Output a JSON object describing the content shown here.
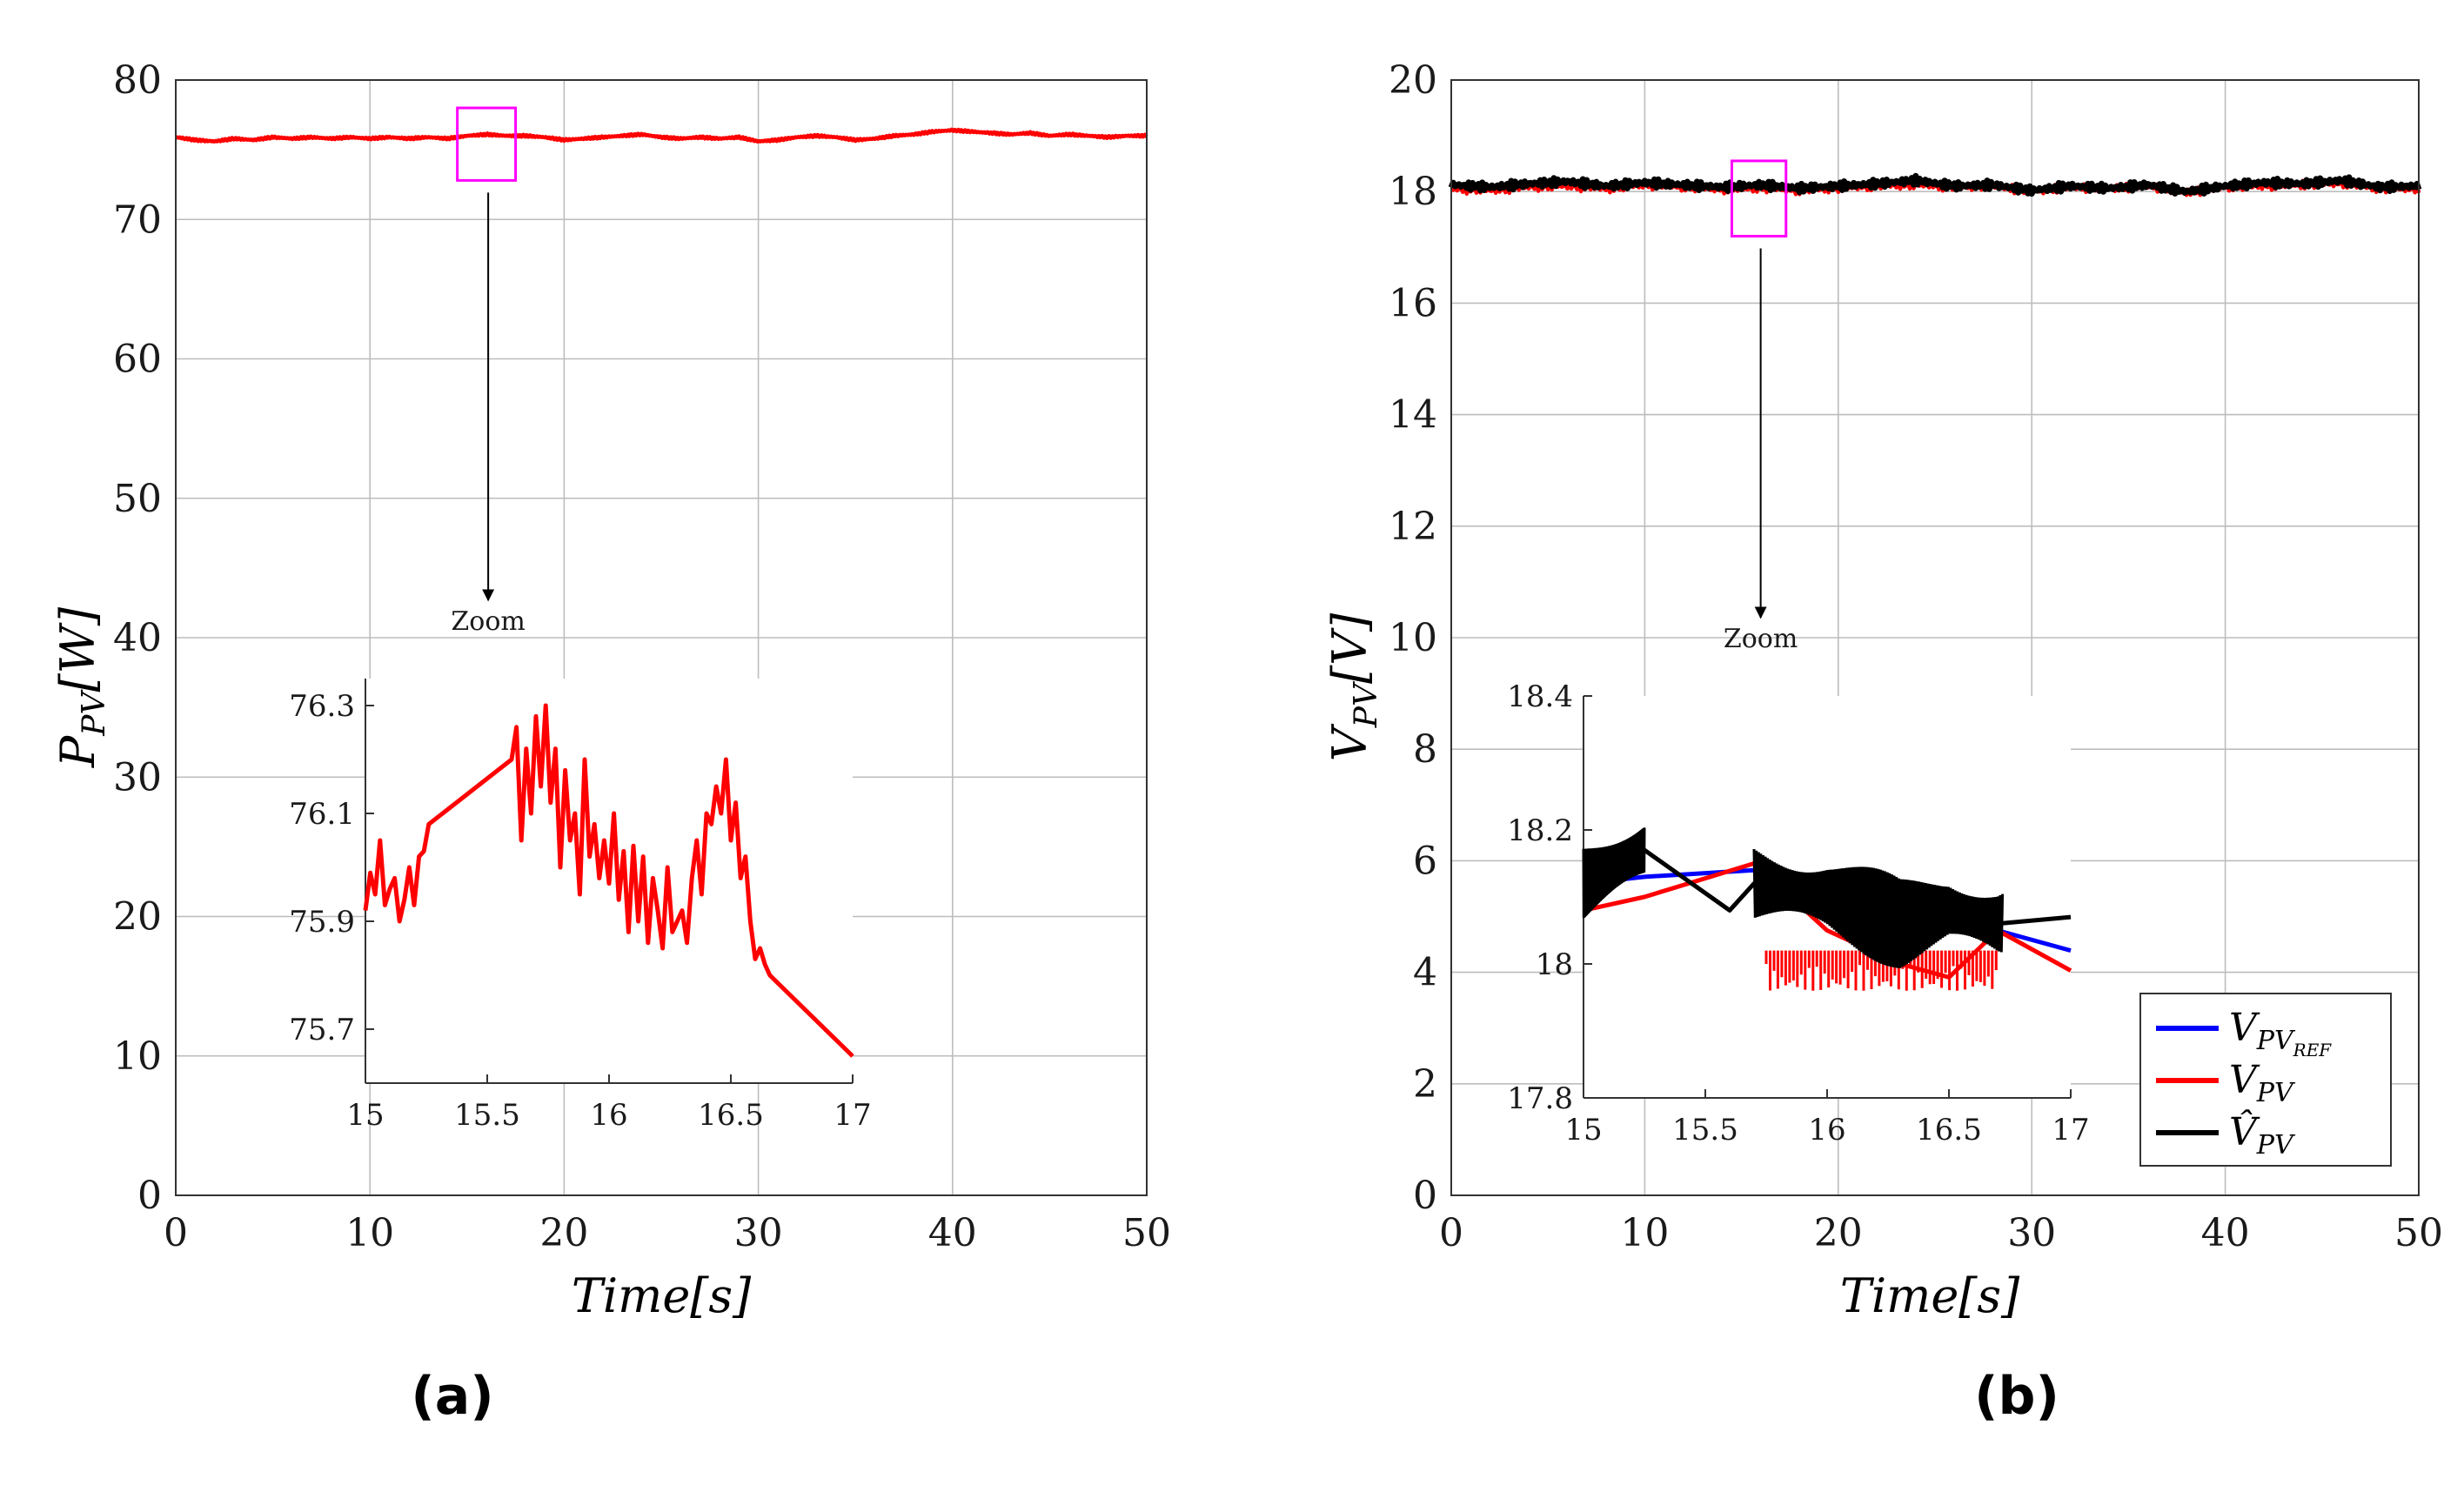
{
  "colors": {
    "red": "#ff0000",
    "blue": "#0000ff",
    "black": "#000000",
    "magenta": "#ff00ff",
    "grid": "#bdbdbd"
  },
  "chart_data": [
    {
      "id": "a",
      "type": "line",
      "panel_label": "(a)",
      "xlabel": "Time[s]",
      "ylabel": "P_PV[W]",
      "ylabel_main": "P",
      "ylabel_sub": "PV",
      "ylabel_unit": "[W]",
      "xlim": [
        0,
        50
      ],
      "ylim": [
        0,
        80
      ],
      "x_ticks": [
        0,
        10,
        20,
        30,
        40,
        50
      ],
      "y_ticks": [
        0,
        10,
        20,
        30,
        40,
        50,
        60,
        70,
        80
      ],
      "grid": true,
      "series": [
        {
          "name": "P_PV",
          "color": "#ff0000",
          "x": [
            0,
            1,
            2,
            3,
            4,
            5,
            6,
            7,
            8,
            9,
            10,
            11,
            12,
            13,
            14,
            15,
            16,
            17,
            18,
            19,
            20,
            21,
            22,
            23,
            24,
            25,
            26,
            27,
            28,
            29,
            30,
            31,
            32,
            33,
            34,
            35,
            36,
            37,
            38,
            39,
            40,
            41,
            42,
            43,
            44,
            45,
            46,
            47,
            48,
            49,
            50
          ],
          "y": [
            75.9,
            75.7,
            75.6,
            75.8,
            75.7,
            75.9,
            75.8,
            75.9,
            75.8,
            75.9,
            75.8,
            75.9,
            75.8,
            75.9,
            75.8,
            76.0,
            76.1,
            76.0,
            76.0,
            75.9,
            75.7,
            75.8,
            75.9,
            76.0,
            76.1,
            75.9,
            75.8,
            75.9,
            75.8,
            75.9,
            75.6,
            75.7,
            75.9,
            76.0,
            75.9,
            75.7,
            75.8,
            76.0,
            76.1,
            76.3,
            76.4,
            76.3,
            76.2,
            76.1,
            76.2,
            76.0,
            76.1,
            76.0,
            75.9,
            76.0,
            76.0
          ]
        }
      ],
      "zoom_box": {
        "x": [
          14.5,
          17.5
        ],
        "y": [
          72.8,
          78.0
        ]
      },
      "zoom_label": "Zoom",
      "inset": {
        "xlim": [
          15,
          17
        ],
        "ylim": [
          75.6,
          76.35
        ],
        "x_ticks": [
          15,
          15.5,
          16,
          16.5,
          17
        ],
        "x_tick_labels": [
          "15",
          "15.5",
          "16",
          "16.5",
          "17"
        ],
        "y_ticks": [
          75.7,
          75.9,
          76.1,
          76.3
        ],
        "y_tick_labels": [
          "75.7",
          "75.9",
          "76.1",
          "76.3"
        ],
        "series": [
          {
            "name": "P_PV",
            "color": "#ff0000",
            "x": [
              15.0,
              15.02,
              15.04,
              15.06,
              15.08,
              15.1,
              15.12,
              15.14,
              15.16,
              15.18,
              15.2,
              15.22,
              15.24,
              15.26,
              15.6,
              15.62,
              15.64,
              15.66,
              15.68,
              15.7,
              15.72,
              15.74,
              15.76,
              15.78,
              15.8,
              15.82,
              15.84,
              15.86,
              15.88,
              15.9,
              15.92,
              15.94,
              15.96,
              15.98,
              16.0,
              16.02,
              16.04,
              16.06,
              16.08,
              16.1,
              16.12,
              16.14,
              16.16,
              16.18,
              16.2,
              16.22,
              16.24,
              16.26,
              16.28,
              16.3,
              16.32,
              16.34,
              16.36,
              16.38,
              16.4,
              16.42,
              16.44,
              16.46,
              16.48,
              16.5,
              16.52,
              16.54,
              16.56,
              16.58,
              16.6,
              16.62,
              16.64,
              16.66,
              17.0
            ],
            "y": [
              75.92,
              75.99,
              75.95,
              76.05,
              75.93,
              75.96,
              75.98,
              75.9,
              75.94,
              76.0,
              75.93,
              76.02,
              76.03,
              76.08,
              76.2,
              76.26,
              76.05,
              76.22,
              76.1,
              76.28,
              76.15,
              76.3,
              76.12,
              76.22,
              76.0,
              76.18,
              76.05,
              76.1,
              75.95,
              76.2,
              76.02,
              76.08,
              75.98,
              76.05,
              75.97,
              76.1,
              75.94,
              76.03,
              75.88,
              76.04,
              75.9,
              76.02,
              75.86,
              75.98,
              75.92,
              75.85,
              76.0,
              75.88,
              75.9,
              75.92,
              75.86,
              75.98,
              76.05,
              75.95,
              76.1,
              76.08,
              76.15,
              76.1,
              76.2,
              76.05,
              76.12,
              75.98,
              76.02,
              75.9,
              75.83,
              75.85,
              75.82,
              75.8,
              75.65
            ]
          }
        ]
      }
    },
    {
      "id": "b",
      "type": "line",
      "panel_label": "(b)",
      "xlabel": "Time[s]",
      "ylabel": "V_PV[V]",
      "ylabel_main": "V",
      "ylabel_sub": "PV",
      "ylabel_unit": "[V]",
      "xlim": [
        0,
        50
      ],
      "ylim": [
        0,
        20
      ],
      "x_ticks": [
        0,
        10,
        20,
        30,
        40,
        50
      ],
      "y_ticks": [
        0,
        2,
        4,
        6,
        8,
        10,
        12,
        14,
        16,
        18,
        20
      ],
      "grid": true,
      "legend": {
        "location": "bottom-right",
        "entries": [
          {
            "label": "V_PV_REF",
            "main": "V",
            "sub": "PV",
            "subsub": "REF",
            "hat": false,
            "color": "#0000ff"
          },
          {
            "label": "V_PV",
            "main": "V",
            "sub": "PV",
            "subsub": "",
            "hat": false,
            "color": "#ff0000"
          },
          {
            "label": "V̂_PV",
            "main": "V̂",
            "sub": "PV",
            "subsub": "",
            "hat": true,
            "color": "#000000"
          }
        ]
      },
      "series": [
        {
          "name": "V_PV",
          "color": "#ff0000",
          "x": [
            0,
            2,
            4,
            6,
            8,
            10,
            12,
            14,
            16,
            18,
            20,
            22,
            24,
            26,
            28,
            30,
            32,
            34,
            36,
            38,
            40,
            42,
            44,
            46,
            48,
            50
          ],
          "y": [
            18.05,
            18.02,
            18.08,
            18.1,
            18.05,
            18.12,
            18.08,
            18.04,
            18.06,
            18.02,
            18.06,
            18.1,
            18.12,
            18.08,
            18.1,
            18.0,
            18.08,
            18.05,
            18.1,
            17.98,
            18.08,
            18.1,
            18.12,
            18.15,
            18.05,
            18.05
          ]
        },
        {
          "name": "V̂_PV",
          "color": "#000000",
          "x": [
            0,
            2,
            4,
            6,
            8,
            10,
            12,
            14,
            16,
            18,
            20,
            22,
            24,
            26,
            28,
            30,
            32,
            34,
            36,
            38,
            40,
            42,
            44,
            46,
            48,
            50
          ],
          "y": [
            18.12,
            18.08,
            18.14,
            18.18,
            18.1,
            18.16,
            18.12,
            18.08,
            18.12,
            18.06,
            18.1,
            18.14,
            18.2,
            18.1,
            18.12,
            18.02,
            18.1,
            18.06,
            18.12,
            18.0,
            18.1,
            18.16,
            18.14,
            18.2,
            18.08,
            18.1
          ]
        }
      ],
      "zoom_box": {
        "x": [
          14.5,
          17.3
        ],
        "y": [
          17.2,
          18.55
        ]
      },
      "zoom_label": "Zoom",
      "inset": {
        "xlim": [
          15,
          17
        ],
        "ylim": [
          17.8,
          18.4
        ],
        "x_ticks": [
          15,
          15.5,
          16,
          16.5,
          17
        ],
        "x_tick_labels": [
          "15",
          "15.5",
          "16",
          "16.5",
          "17"
        ],
        "y_ticks": [
          17.8,
          18,
          18.2,
          18.4
        ],
        "y_tick_labels": [
          "17.8",
          "18",
          "18.2",
          "18.4"
        ],
        "series": [
          {
            "name": "V_PV_REF",
            "color": "#0000ff",
            "x": [
              15.0,
              15.25,
              15.7,
              16.7,
              17.0
            ],
            "y": [
              18.12,
              18.13,
              18.14,
              18.05,
              18.02
            ]
          },
          {
            "name": "V_PV",
            "color": "#ff0000",
            "x": [
              15.0,
              15.25,
              15.7,
              16.0,
              16.3,
              16.5,
              16.7,
              17.0
            ],
            "y": [
              18.08,
              18.1,
              18.15,
              18.05,
              18.0,
              17.98,
              18.05,
              17.99
            ]
          },
          {
            "name": "V̂_PV",
            "color": "#000000",
            "x": [
              15.0,
              15.25,
              15.6,
              15.7,
              16.0,
              16.3,
              16.5,
              16.7,
              17.0
            ],
            "y": [
              18.12,
              18.17,
              18.08,
              18.12,
              18.1,
              18.06,
              18.08,
              18.06,
              18.07
            ]
          }
        ]
      }
    }
  ]
}
